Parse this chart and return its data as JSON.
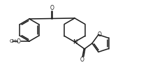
{
  "bg_color": "#ffffff",
  "line_color": "#1a1a1a",
  "lw": 1.1,
  "figsize": [
    2.02,
    0.93
  ],
  "dpi": 100,
  "xlim": [
    0,
    202
  ],
  "ylim": [
    0,
    93
  ]
}
